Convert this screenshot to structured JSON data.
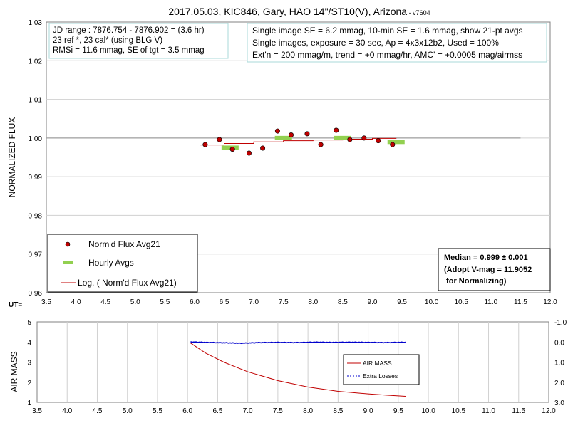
{
  "title_main": "2017.05.03, KIC846, Gary, HAO 14\"/ST10(V), Arizona",
  "title_version": " - v7604",
  "info_left": [
    "JD range : 7876.754  - 7876.902  = (3.6 hr)",
    "23 ref *, 23 cal* (using BLG V)",
    "RMSi = 11.6 mmag, SE of tgt = 3.5 mmag"
  ],
  "info_right": [
    "Single image SE = 6.2 mmag, 10-min SE = 1.6 mmag, show 21-pt avgs",
    "Single images, exposure = 30 sec, Ap = 4x3x12b2, Used = 100%",
    "Ext'n = 200 mmag/m, trend = +0 mmag/hr, AMC' = +0.0005 mag/airmss"
  ],
  "median_box": [
    "Median = 0.999 ± 0.001",
    "(Adopt V-mag = 11.9052",
    " for Normalizing)"
  ],
  "ut_label": "UT=",
  "colors": {
    "points": "#c00000",
    "hourly": "#92d050",
    "trend": "#c00000",
    "airmass": "#c00000",
    "extra_losses": "#0000cc",
    "unity_line": "#a0a0a0",
    "grid": "#d0d0d0",
    "box_border": "#a8d8d8"
  },
  "chart_data": [
    {
      "type": "scatter",
      "ylabel": "NORMALIZED FLUX",
      "xlim": [
        3.5,
        12.0
      ],
      "ylim": [
        0.96,
        1.03
      ],
      "x_ticks": [
        "3.5",
        "4.0",
        "4.5",
        "5.0",
        "5.5",
        "6.0",
        "6.5",
        "7.0",
        "7.5",
        "8.0",
        "8.5",
        "9.0",
        "9.5",
        "10.0",
        "10.5",
        "11.0",
        "11.5",
        "12.0"
      ],
      "y_ticks": [
        "0.96",
        "0.97",
        "0.98",
        "0.99",
        "1.00",
        "1.01",
        "1.02",
        "1.03"
      ],
      "unity_line": {
        "x": [
          3.5,
          11.5
        ],
        "y": 1.0
      },
      "series": [
        {
          "name": "Norm'd Flux Avg21",
          "x": [
            6.18,
            6.42,
            6.64,
            6.92,
            7.15,
            7.4,
            7.63,
            7.9,
            8.13,
            8.39,
            8.62,
            8.86,
            9.1,
            9.34
          ],
          "y": [
            0.9983,
            0.9996,
            0.9971,
            0.9961,
            0.9974,
            1.0018,
            1.0008,
            1.0011,
            0.9983,
            1.002,
            0.9996,
            1.0,
            0.9993,
            0.9983
          ]
        },
        {
          "name": "Hourly Avgs",
          "x": [
            6.6,
            7.5,
            8.5,
            9.4
          ],
          "y": [
            0.9975,
            1.0,
            1.0,
            0.999
          ]
        },
        {
          "name": "Log. ( Norm'd Flux Avg21)",
          "x": [
            6.1,
            6.5,
            7.0,
            7.5,
            8.0,
            8.5,
            9.0,
            9.4
          ],
          "y": [
            0.9982,
            0.9986,
            0.999,
            0.9993,
            0.9995,
            0.9997,
            0.9999,
            1.0
          ]
        }
      ]
    },
    {
      "type": "line",
      "ylabel": "AIR MASS",
      "xlim": [
        3.5,
        12.0
      ],
      "ylim": [
        1,
        5
      ],
      "y2lim": [
        -1.0,
        3.0
      ],
      "x_ticks": [
        "3.5",
        "4.0",
        "4.5",
        "5.0",
        "5.5",
        "6.0",
        "6.5",
        "7.0",
        "7.5",
        "8.0",
        "8.5",
        "9.0",
        "9.5",
        "10.0",
        "10.5",
        "11.0",
        "11.5",
        "12.0"
      ],
      "y_ticks": [
        "1",
        "2",
        "3",
        "4",
        "5"
      ],
      "y2_ticks": [
        "-1.0",
        "0.0",
        "1.0",
        "2.0",
        "3.0"
      ],
      "series": [
        {
          "name": "AIR MASS",
          "x": [
            6.05,
            6.3,
            6.6,
            7.0,
            7.5,
            8.0,
            8.5,
            9.0,
            9.3,
            9.62
          ],
          "y": [
            3.95,
            3.45,
            3.0,
            2.52,
            2.08,
            1.76,
            1.55,
            1.42,
            1.36,
            1.3
          ]
        },
        {
          "name": "Extra Losses",
          "x": [
            6.05,
            6.3,
            6.6,
            6.9,
            7.2,
            7.5,
            7.8,
            8.1,
            8.4,
            8.7,
            9.0,
            9.3,
            9.62
          ],
          "y": [
            0.0,
            0.02,
            0.04,
            0.06,
            0.03,
            0.02,
            0.03,
            0.01,
            0.02,
            0.01,
            0.02,
            0.03,
            0.01
          ]
        }
      ]
    }
  ]
}
